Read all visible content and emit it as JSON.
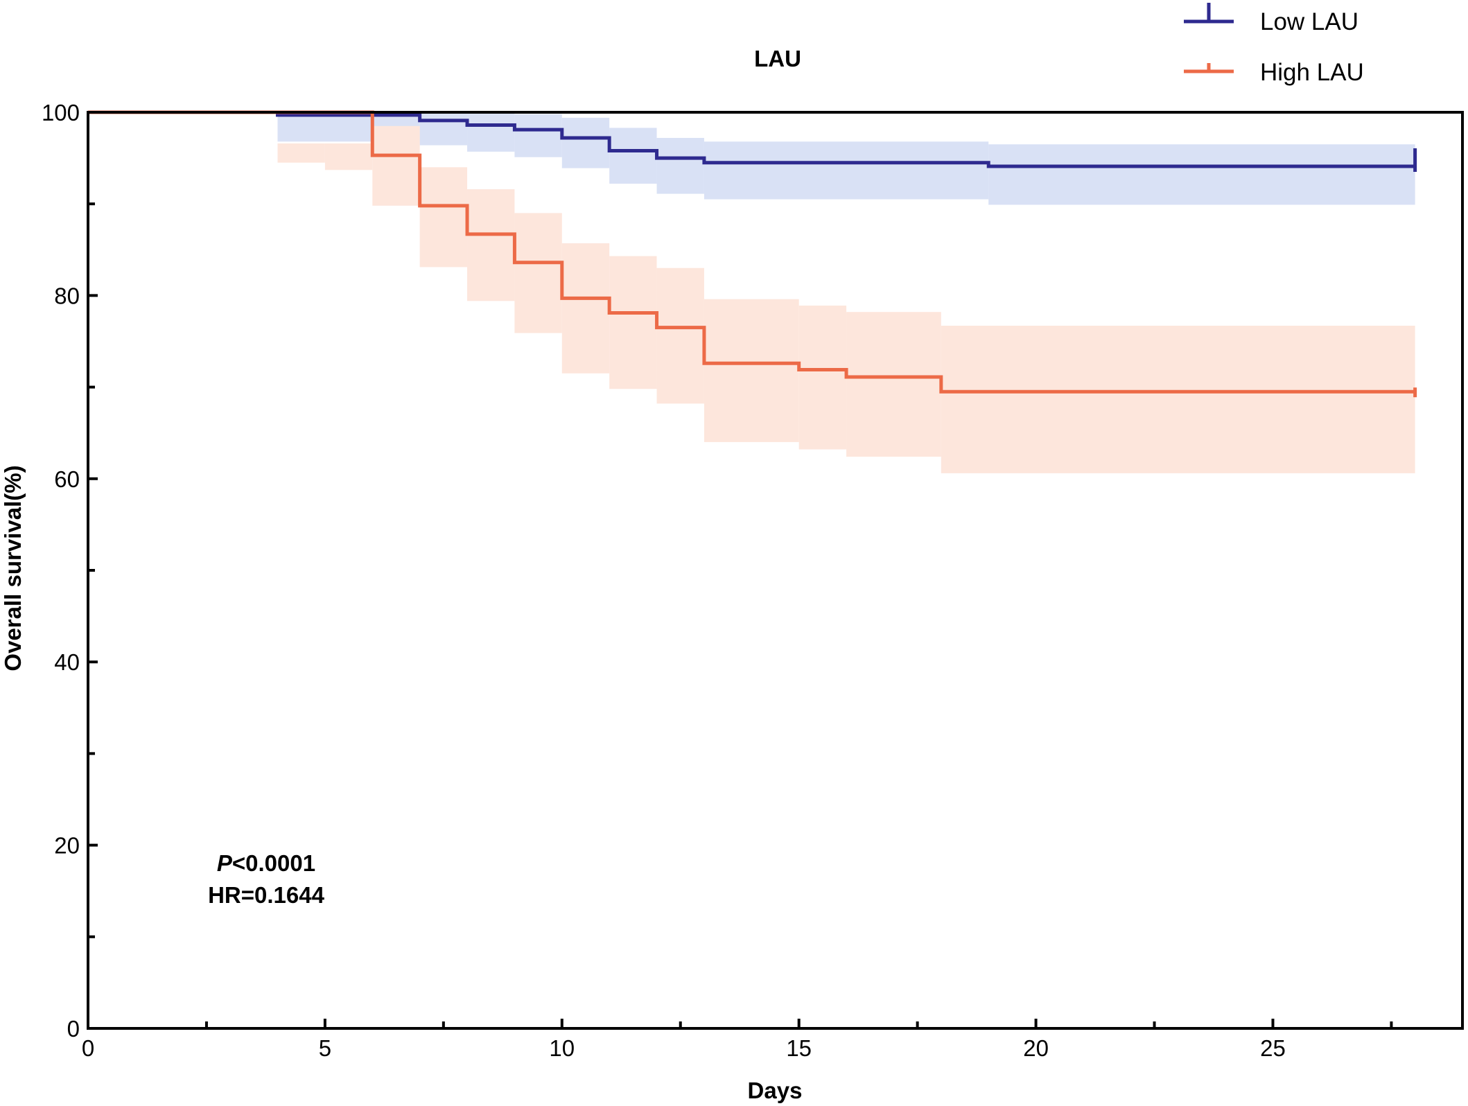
{
  "chart_data": {
    "type": "line",
    "title": "LAU",
    "xlabel": "Days",
    "ylabel": "Overall survival(%)",
    "xlim": [
      0,
      29
    ],
    "ylim": [
      0,
      100
    ],
    "x_ticks": [
      0,
      5,
      10,
      15,
      20,
      25
    ],
    "y_ticks": [
      0,
      20,
      40,
      60,
      80,
      100
    ],
    "grid": false,
    "legend": "top-right",
    "series": [
      {
        "name": "Low LAU",
        "color": "#2e2a8f",
        "band_color": "#d9e1f5",
        "x": [
          0,
          4,
          7,
          8,
          9,
          10,
          11,
          12,
          13,
          19,
          28
        ],
        "y": [
          100,
          99.7,
          99.1,
          98.6,
          98.1,
          97.2,
          95.8,
          95.0,
          94.5,
          94.1,
          94.1
        ],
        "ci_lower": [
          100,
          96.8,
          96.4,
          95.7,
          95.1,
          93.9,
          92.2,
          91.1,
          90.5,
          89.9,
          89.9
        ],
        "ci_upper": [
          100,
          100,
          100,
          100,
          99.8,
          99.4,
          98.3,
          97.2,
          96.8,
          96.5,
          96.5
        ],
        "final_censor": true
      },
      {
        "name": "High LAU",
        "color": "#ec6a47",
        "band_color": "#fde6dc",
        "x": [
          0,
          6,
          7,
          8,
          9,
          10,
          11,
          12,
          13,
          15,
          16,
          18,
          28
        ],
        "y": [
          100,
          95.3,
          89.8,
          86.7,
          83.6,
          79.7,
          78.1,
          76.5,
          72.6,
          71.9,
          71.1,
          69.5,
          69.5
        ],
        "ci_lower": [
          100,
          89.8,
          83.1,
          79.4,
          75.9,
          71.5,
          69.8,
          68.2,
          64.0,
          63.2,
          62.4,
          60.6,
          60.6
        ],
        "ci_upper": [
          100,
          98.5,
          94.0,
          91.6,
          89.0,
          85.7,
          84.3,
          83.0,
          79.6,
          78.9,
          78.2,
          76.7,
          76.7
        ],
        "pre_band": [
          {
            "from": 4,
            "to": 5,
            "lower": 94.5,
            "upper": 96.6
          },
          {
            "from": 5,
            "to": 6,
            "lower": 93.7,
            "upper": 96.6
          }
        ],
        "final_censor": true
      }
    ],
    "annotations": {
      "p_prefix": "P",
      "p_value": "<0.0001",
      "hr": "HR=0.1644"
    }
  }
}
